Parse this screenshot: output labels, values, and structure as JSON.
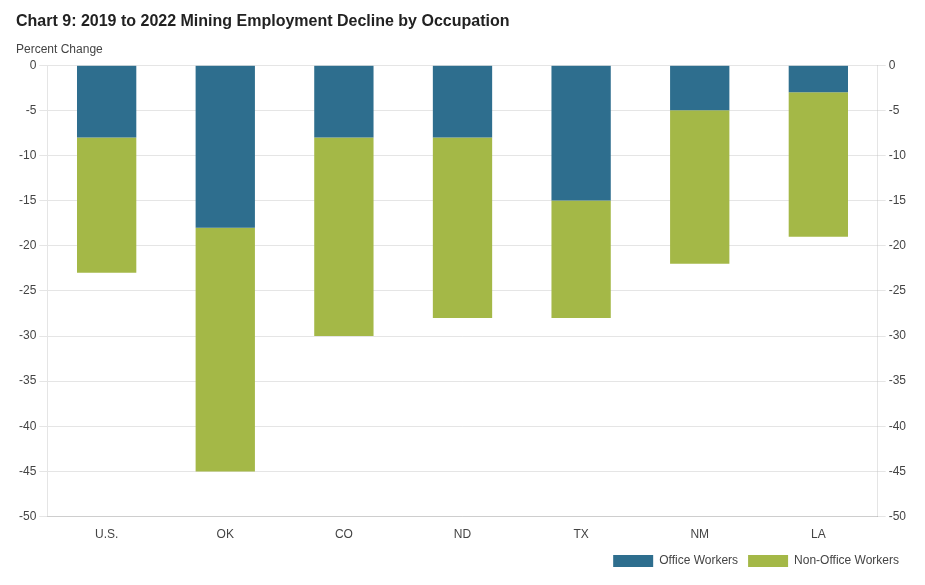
{
  "chart_data": {
    "type": "bar",
    "title": "Chart 9: 2019 to 2022 Mining Employment Decline by Occupation",
    "ylabel": "Percent Change",
    "categories": [
      "U.S.",
      "OK",
      "CO",
      "ND",
      "TX",
      "NM",
      "LA"
    ],
    "series": [
      {
        "name": "Office Workers",
        "color": "#2e6e8e",
        "values": [
          -8,
          -18,
          -8,
          -8,
          -15,
          -5,
          -3
        ]
      },
      {
        "name": "Non-Office Workers",
        "color": "#a4b847",
        "values": [
          -15,
          -27,
          -22,
          -20,
          -13,
          -17,
          -16
        ]
      }
    ],
    "stacked": true,
    "ylim": [
      -50,
      0
    ],
    "yticks": [
      0,
      -5,
      -10,
      -15,
      -20,
      -25,
      -30,
      -35,
      -40,
      -45,
      -50
    ],
    "y2lim": [
      -50,
      0
    ],
    "y2ticks": [
      0,
      -5,
      -10,
      -15,
      -20,
      -25,
      -30,
      -35,
      -40,
      -45,
      -50
    ],
    "grid": true,
    "legend": "lower right"
  }
}
